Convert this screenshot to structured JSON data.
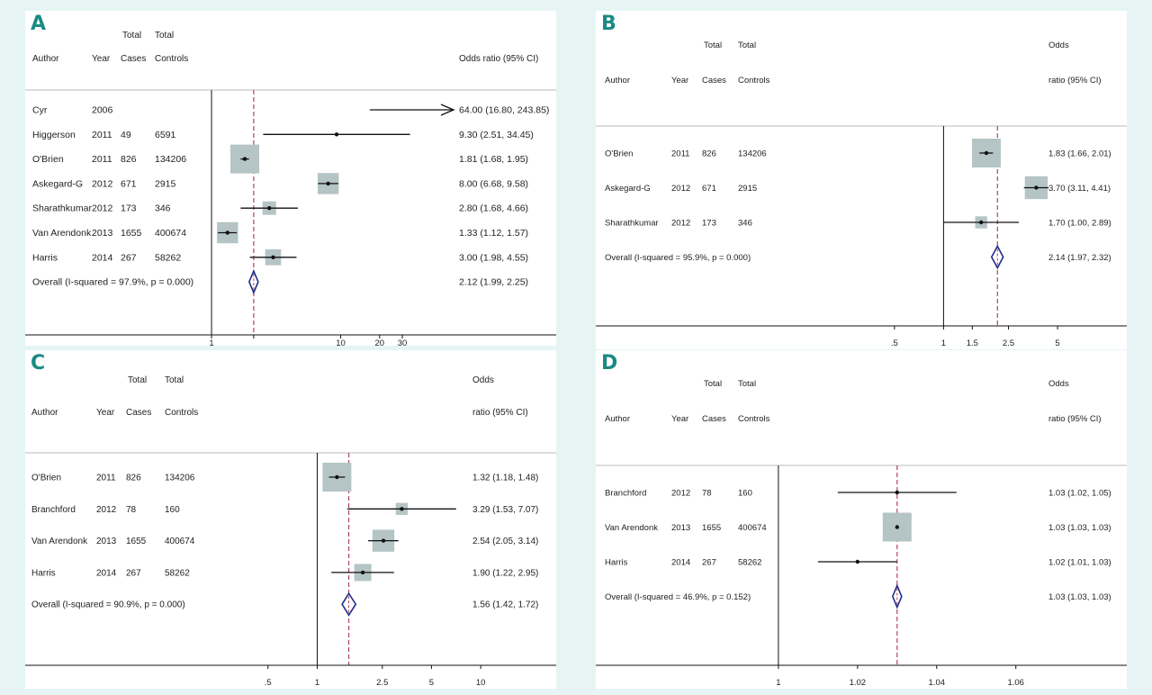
{
  "figure": {
    "background_color": "#e6f5f4",
    "label_color": "#1a8a84"
  },
  "chart_data": [
    {
      "panel": "A",
      "type": "forest",
      "header": {
        "total_1": "Total",
        "total_2": "Total",
        "author": "Author",
        "year": "Year",
        "cases": "Cases",
        "controls": "Controls",
        "or_line1": "",
        "or_line2": "Odds ratio (95% CI)"
      },
      "scale": "log",
      "xlim": [
        0.68,
        42
      ],
      "ticks": [
        {
          "v": 1,
          "label": "1"
        },
        {
          "v": 10,
          "label": "10"
        },
        {
          "v": 20,
          "label": "20"
        },
        {
          "v": 30,
          "label": "30"
        }
      ],
      "null_line": 1,
      "pooled_line": 2.12,
      "studies": [
        {
          "author": "Cyr",
          "year": "2006",
          "cases": "",
          "controls": "",
          "or": 64.0,
          "lo": 16.8,
          "hi": 243.85,
          "label": "64.00 (16.80, 243.85)",
          "weight": 0
        },
        {
          "author": "Higgerson",
          "year": "2011",
          "cases": "49",
          "controls": "6591",
          "or": 9.3,
          "lo": 2.51,
          "hi": 34.45,
          "label": "9.30 (2.51, 34.45)",
          "weight": 0
        },
        {
          "author": "O'Brien",
          "year": "2011",
          "cases": "826",
          "controls": "134206",
          "or": 1.81,
          "lo": 1.68,
          "hi": 1.95,
          "label": "1.81 (1.68, 1.95)",
          "weight": 1.0
        },
        {
          "author": "Askegard-G",
          "year": "2012",
          "cases": "671",
          "controls": "2915",
          "or": 8.0,
          "lo": 6.68,
          "hi": 9.58,
          "label": "8.00 (6.68, 9.58)",
          "weight": 0.45
        },
        {
          "author": "Sharathkumar",
          "year": "2012",
          "cases": "173",
          "controls": "346",
          "or": 2.8,
          "lo": 1.68,
          "hi": 4.66,
          "label": "2.80 (1.68, 4.66)",
          "weight": 0.12
        },
        {
          "author": "Van Arendonk",
          "year": "2013",
          "cases": "1655",
          "controls": "400674",
          "or": 1.33,
          "lo": 1.12,
          "hi": 1.57,
          "label": "1.33 (1.12, 1.57)",
          "weight": 0.45
        },
        {
          "author": "Harris",
          "year": "2014",
          "cases": "267",
          "controls": "58262",
          "or": 3.0,
          "lo": 1.98,
          "hi": 4.55,
          "label": "3.00 (1.98, 4.55)",
          "weight": 0.2
        }
      ],
      "overall": {
        "text": "Overall  (I-squared = 97.9%, p = 0.000)",
        "or": 2.12,
        "lo": 1.99,
        "hi": 2.25,
        "label": "2.12 (1.99, 2.25)"
      }
    },
    {
      "panel": "B",
      "type": "forest",
      "header": {
        "total_1": "Total",
        "total_2": "Total",
        "author": "Author",
        "year": "Year",
        "cases": "Cases",
        "controls": "Controls",
        "or_line1": "Odds",
        "or_line2": "ratio (95% CI)"
      },
      "scale": "log",
      "xlim": [
        0.29,
        8.2
      ],
      "ticks": [
        {
          "v": 0.5,
          "label": ".5"
        },
        {
          "v": 1,
          "label": "1"
        },
        {
          "v": 1.5,
          "label": "1.5"
        },
        {
          "v": 2.5,
          "label": "2.5"
        },
        {
          "v": 5,
          "label": "5"
        }
      ],
      "null_line": 1,
      "pooled_line": 2.14,
      "studies": [
        {
          "author": "O'Brien",
          "year": "2011",
          "cases": "826",
          "controls": "134206",
          "or": 1.83,
          "lo": 1.66,
          "hi": 2.01,
          "label": "1.83 (1.66, 2.01)",
          "weight": 1.0
        },
        {
          "author": "Askegard-G",
          "year": "2012",
          "cases": "671",
          "controls": "2915",
          "or": 3.7,
          "lo": 3.11,
          "hi": 4.41,
          "label": "3.70 (3.11, 4.41)",
          "weight": 0.55
        },
        {
          "author": "Sharathkumar",
          "year": "2012",
          "cases": "173",
          "controls": "346",
          "or": 1.7,
          "lo": 1.0,
          "hi": 2.89,
          "label": "1.70 (1.00, 2.89)",
          "weight": 0.08
        }
      ],
      "overall": {
        "text": "Overall  (I-squared = 95.9%, p = 0.000)",
        "or": 2.14,
        "lo": 1.97,
        "hi": 2.32,
        "label": "2.14 (1.97, 2.32)"
      }
    },
    {
      "panel": "C",
      "type": "forest",
      "header": {
        "total_1": "Total",
        "total_2": "Total",
        "author": "Author",
        "year": "Year",
        "cases": "Cases",
        "controls": "Controls",
        "or_line1": "Odds",
        "or_line2": "ratio (95% CI)"
      },
      "scale": "log",
      "xlim": [
        0.22,
        17
      ],
      "ticks": [
        {
          "v": 0.5,
          "label": ".5"
        },
        {
          "v": 1,
          "label": "1"
        },
        {
          "v": 2.5,
          "label": "2.5"
        },
        {
          "v": 5,
          "label": "5"
        },
        {
          "v": 10,
          "label": "10"
        }
      ],
      "null_line": 1,
      "pooled_line": 1.56,
      "studies": [
        {
          "author": "O'Brien",
          "year": "2011",
          "cases": "826",
          "controls": "134206",
          "or": 1.32,
          "lo": 1.18,
          "hi": 1.48,
          "label": "1.32 (1.18, 1.48)",
          "weight": 1.0
        },
        {
          "author": "Branchford",
          "year": "2012",
          "cases": "78",
          "controls": "160",
          "or": 3.29,
          "lo": 1.53,
          "hi": 7.07,
          "label": "3.29 (1.53, 7.07)",
          "weight": 0.08
        },
        {
          "author": "Van Arendonk",
          "year": "2013",
          "cases": "1655",
          "controls": "400674",
          "or": 2.54,
          "lo": 2.05,
          "hi": 3.14,
          "label": "2.54 (2.05, 3.14)",
          "weight": 0.5
        },
        {
          "author": "Harris",
          "year": "2014",
          "cases": "267",
          "controls": "58262",
          "or": 1.9,
          "lo": 1.22,
          "hi": 2.95,
          "label": "1.90 (1.22, 2.95)",
          "weight": 0.25
        }
      ],
      "overall": {
        "text": "Overall  (I-squared = 90.9%, p = 0.000)",
        "or": 1.56,
        "lo": 1.42,
        "hi": 1.72,
        "label": "1.56 (1.42, 1.72)"
      }
    },
    {
      "panel": "D",
      "type": "forest",
      "header": {
        "total_1": "Total",
        "total_2": "Total",
        "author": "Author",
        "year": "Year",
        "cases": "Cases",
        "controls": "Controls",
        "or_line1": "Odds",
        "or_line2": "ratio (95% CI)"
      },
      "scale": "linear",
      "xlim": [
        0.9998,
        1.0778
      ],
      "ticks": [
        {
          "v": 1,
          "label": "1"
        },
        {
          "v": 1.02,
          "label": "1.02"
        },
        {
          "v": 1.04,
          "label": "1.04"
        },
        {
          "v": 1.06,
          "label": "1.06"
        }
      ],
      "null_line": 1,
      "pooled_line": 1.03,
      "studies": [
        {
          "author": "Branchford",
          "year": "2012",
          "cases": "78",
          "controls": "160",
          "or": 1.03,
          "lo": 1.015,
          "hi": 1.045,
          "label": "1.03 (1.02, 1.05)",
          "weight": 0
        },
        {
          "author": "Van Arendonk",
          "year": "2013",
          "cases": "1655",
          "controls": "400674",
          "or": 1.03,
          "lo": 1.03,
          "hi": 1.03,
          "label": "1.03 (1.03, 1.03)",
          "weight": 1.0
        },
        {
          "author": "Harris",
          "year": "2014",
          "cases": "267",
          "controls": "58262",
          "or": 1.02,
          "lo": 1.01,
          "hi": 1.03,
          "label": "1.02 (1.01, 1.03)",
          "weight": 0
        }
      ],
      "overall": {
        "text": "Overall  (I-squared = 46.9%, p = 0.152)",
        "or": 1.03,
        "lo": 1.029,
        "hi": 1.031,
        "label": "1.03 (1.03, 1.03)"
      }
    }
  ]
}
